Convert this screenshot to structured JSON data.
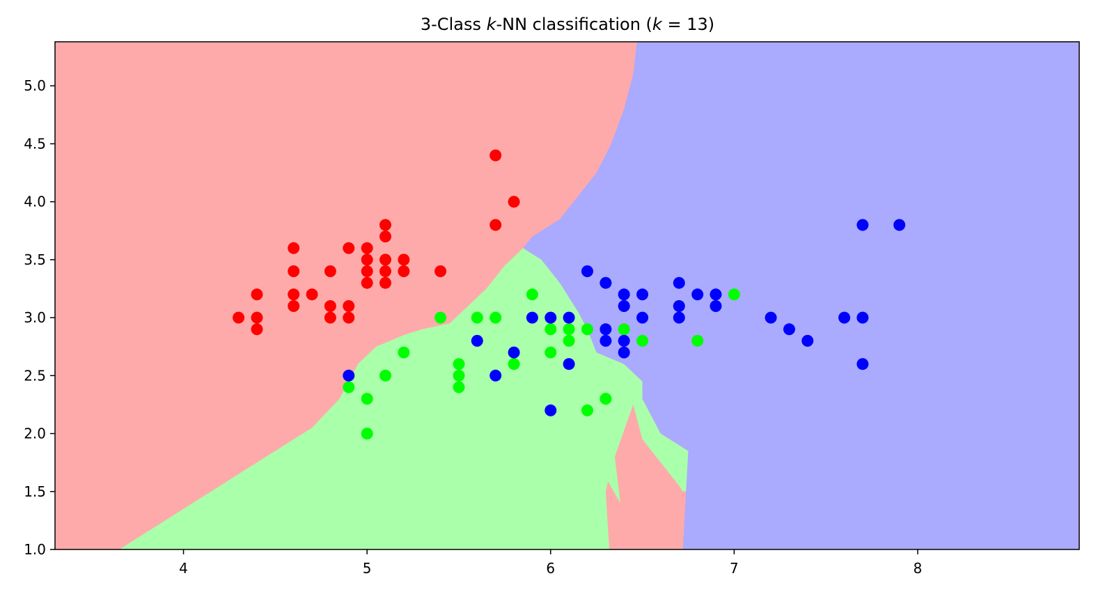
{
  "chart_data": {
    "type": "scatter",
    "title": "3-Class k-NN classification (k = 13)",
    "title_parts": {
      "prefix": "3-Class ",
      "k1": "k",
      "mid": "-NN classification (",
      "k2": "k",
      "suffix": " = 13)"
    },
    "xlabel": "",
    "ylabel": "",
    "xlim": [
      3.3,
      8.88
    ],
    "ylim": [
      1.0,
      5.38
    ],
    "x_ticks": [
      4,
      5,
      6,
      7,
      8
    ],
    "x_tick_labels": [
      "4",
      "5",
      "6",
      "7",
      "8"
    ],
    "y_ticks": [
      1.0,
      1.5,
      2.0,
      2.5,
      3.0,
      3.5,
      4.0,
      4.5,
      5.0
    ],
    "y_tick_labels": [
      "1.0",
      "1.5",
      "2.0",
      "2.5",
      "3.0",
      "3.5",
      "4.0",
      "4.5",
      "5.0"
    ],
    "grid": false,
    "legend": "none",
    "region_colors": {
      "red": "#ffaaaa",
      "green": "#aaffaa",
      "blue": "#aaaaff"
    },
    "decision_regions": {
      "green_region": [
        [
          3.65,
          1.0
        ],
        [
          3.85,
          1.2
        ],
        [
          4.1,
          1.45
        ],
        [
          4.3,
          1.65
        ],
        [
          4.5,
          1.85
        ],
        [
          4.7,
          2.05
        ],
        [
          4.85,
          2.3
        ],
        [
          4.95,
          2.6
        ],
        [
          5.05,
          2.75
        ],
        [
          5.2,
          2.85
        ],
        [
          5.3,
          2.9
        ],
        [
          5.45,
          2.95
        ],
        [
          5.55,
          3.1
        ],
        [
          5.65,
          3.25
        ],
        [
          5.75,
          3.45
        ],
        [
          5.85,
          3.6
        ],
        [
          5.95,
          3.5
        ],
        [
          6.05,
          3.3
        ],
        [
          6.15,
          3.05
        ],
        [
          6.2,
          2.9
        ],
        [
          6.25,
          2.7
        ],
        [
          6.4,
          2.6
        ],
        [
          6.5,
          2.45
        ],
        [
          6.5,
          2.3
        ],
        [
          6.6,
          2.0
        ],
        [
          6.75,
          1.85
        ],
        [
          6.75,
          1.5
        ],
        [
          6.72,
          1.5
        ],
        [
          6.7,
          1.55
        ],
        [
          6.5,
          1.95
        ],
        [
          6.45,
          2.25
        ],
        [
          6.35,
          1.8
        ],
        [
          6.38,
          1.4
        ],
        [
          6.2,
          1.9
        ],
        [
          6.15,
          2.4
        ],
        [
          6.2,
          2.5
        ],
        [
          6.45,
          2.55
        ],
        [
          6.3,
          1.5
        ],
        [
          6.32,
          1.0
        ]
      ],
      "blue_region": [
        [
          6.5,
          5.38
        ],
        [
          8.88,
          5.38
        ],
        [
          8.88,
          1.0
        ],
        [
          6.72,
          1.0
        ],
        [
          6.75,
          1.85
        ],
        [
          6.6,
          2.0
        ],
        [
          6.5,
          2.3
        ],
        [
          6.5,
          2.45
        ],
        [
          6.4,
          2.6
        ],
        [
          6.25,
          2.7
        ],
        [
          6.2,
          2.9
        ],
        [
          6.15,
          3.05
        ],
        [
          6.05,
          3.3
        ],
        [
          5.95,
          3.5
        ],
        [
          5.85,
          3.6
        ],
        [
          5.9,
          3.7
        ],
        [
          6.05,
          3.85
        ],
        [
          6.15,
          4.05
        ],
        [
          6.25,
          4.25
        ],
        [
          6.33,
          4.5
        ],
        [
          6.4,
          4.8
        ],
        [
          6.45,
          5.1
        ],
        [
          6.47,
          5.38
        ]
      ]
    },
    "series": [
      {
        "class": "red",
        "color": "#ff0000",
        "points": [
          [
            4.3,
            3.0
          ],
          [
            4.4,
            3.2
          ],
          [
            4.4,
            3.0
          ],
          [
            4.4,
            2.9
          ],
          [
            4.6,
            3.6
          ],
          [
            4.6,
            3.4
          ],
          [
            4.6,
            3.2
          ],
          [
            4.6,
            3.1
          ],
          [
            4.7,
            3.2
          ],
          [
            4.8,
            3.4
          ],
          [
            4.8,
            3.1
          ],
          [
            4.8,
            3.0
          ],
          [
            4.9,
            3.6
          ],
          [
            4.9,
            3.1
          ],
          [
            4.9,
            3.0
          ],
          [
            5.0,
            3.6
          ],
          [
            5.0,
            3.5
          ],
          [
            5.0,
            3.4
          ],
          [
            5.0,
            3.3
          ],
          [
            5.1,
            3.8
          ],
          [
            5.1,
            3.7
          ],
          [
            5.1,
            3.5
          ],
          [
            5.1,
            3.4
          ],
          [
            5.1,
            3.3
          ],
          [
            5.2,
            3.5
          ],
          [
            5.2,
            3.4
          ],
          [
            5.4,
            3.4
          ],
          [
            5.7,
            4.4
          ],
          [
            5.7,
            3.8
          ],
          [
            5.8,
            4.0
          ]
        ]
      },
      {
        "class": "green",
        "color": "#00ff00",
        "points": [
          [
            4.9,
            2.4
          ],
          [
            5.0,
            2.3
          ],
          [
            5.0,
            2.0
          ],
          [
            5.1,
            2.5
          ],
          [
            5.2,
            2.7
          ],
          [
            5.4,
            3.0
          ],
          [
            5.5,
            2.6
          ],
          [
            5.5,
            2.5
          ],
          [
            5.5,
            2.4
          ],
          [
            5.6,
            3.0
          ],
          [
            5.7,
            3.0
          ],
          [
            5.8,
            2.6
          ],
          [
            5.9,
            3.2
          ],
          [
            6.0,
            2.9
          ],
          [
            6.0,
            2.7
          ],
          [
            6.1,
            2.9
          ],
          [
            6.1,
            2.8
          ],
          [
            6.2,
            2.9
          ],
          [
            6.2,
            2.2
          ],
          [
            6.3,
            3.3
          ],
          [
            6.3,
            2.3
          ],
          [
            6.4,
            2.9
          ],
          [
            6.5,
            2.8
          ],
          [
            6.7,
            3.1
          ],
          [
            6.8,
            2.8
          ],
          [
            7.0,
            3.2
          ]
        ]
      },
      {
        "class": "blue",
        "color": "#0000ff",
        "points": [
          [
            4.9,
            2.5
          ],
          [
            5.6,
            2.8
          ],
          [
            5.7,
            2.5
          ],
          [
            5.8,
            2.7
          ],
          [
            5.9,
            3.0
          ],
          [
            6.0,
            3.0
          ],
          [
            6.0,
            2.2
          ],
          [
            6.1,
            3.0
          ],
          [
            6.1,
            2.6
          ],
          [
            6.2,
            3.4
          ],
          [
            6.3,
            3.3
          ],
          [
            6.3,
            2.9
          ],
          [
            6.3,
            2.8
          ],
          [
            6.4,
            3.2
          ],
          [
            6.4,
            3.1
          ],
          [
            6.4,
            2.8
          ],
          [
            6.4,
            2.7
          ],
          [
            6.5,
            3.2
          ],
          [
            6.5,
            3.0
          ],
          [
            6.7,
            3.3
          ],
          [
            6.7,
            3.1
          ],
          [
            6.7,
            3.0
          ],
          [
            6.8,
            3.2
          ],
          [
            6.9,
            3.2
          ],
          [
            6.9,
            3.1
          ],
          [
            7.2,
            3.0
          ],
          [
            7.3,
            2.9
          ],
          [
            7.4,
            2.8
          ],
          [
            7.6,
            3.0
          ],
          [
            7.7,
            3.8
          ],
          [
            7.7,
            3.0
          ],
          [
            7.7,
            2.6
          ],
          [
            7.9,
            3.8
          ]
        ]
      }
    ]
  }
}
